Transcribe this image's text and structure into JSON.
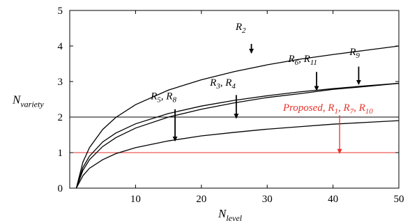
{
  "chart_data": {
    "type": "line",
    "xlabel": {
      "main": "N",
      "sub": "level"
    },
    "ylabel": {
      "main": "N",
      "sub": "variety"
    },
    "xlim": [
      0,
      50
    ],
    "ylim": [
      0,
      5
    ],
    "xticks": [
      {
        "value": 10,
        "label": "10"
      },
      {
        "value": 20,
        "label": "20"
      },
      {
        "value": 30,
        "label": "30"
      },
      {
        "value": 40,
        "label": "40"
      },
      {
        "value": 50,
        "label": "50"
      }
    ],
    "yticks": [
      {
        "value": 0,
        "label": "0"
      },
      {
        "value": 1,
        "label": "1"
      },
      {
        "value": 2,
        "label": "2"
      },
      {
        "value": 3,
        "label": "3"
      },
      {
        "value": 4,
        "label": "4"
      },
      {
        "value": 5,
        "label": "5"
      }
    ],
    "grid": false,
    "reference_lines": [
      {
        "y": 2,
        "color": "#000000"
      },
      {
        "y": 1,
        "color": "#e8312a"
      }
    ],
    "series": [
      {
        "color": "#000000",
        "x": [
          1,
          2,
          3,
          5,
          7,
          10,
          15,
          20,
          25,
          30,
          35,
          40,
          45,
          50
        ],
        "y": [
          0,
          0.73,
          1.14,
          1.65,
          1.99,
          2.35,
          2.76,
          3.05,
          3.28,
          3.47,
          3.63,
          3.76,
          3.88,
          4.0
        ]
      },
      {
        "color": "#000000",
        "x": [
          1,
          2,
          3,
          5,
          7,
          10,
          15,
          20,
          25,
          30,
          35,
          40,
          45,
          50
        ],
        "y": [
          0,
          0.58,
          0.9,
          1.3,
          1.55,
          1.81,
          2.1,
          2.31,
          2.47,
          2.6,
          2.71,
          2.8,
          2.88,
          2.95
        ]
      },
      {
        "color": "#000000",
        "x": [
          1,
          2,
          3,
          5,
          7,
          10,
          15,
          20,
          25,
          30,
          35,
          40,
          45,
          50
        ],
        "y": [
          0,
          0.5,
          0.8,
          1.17,
          1.42,
          1.69,
          2.0,
          2.22,
          2.4,
          2.55,
          2.66,
          2.78,
          2.86,
          2.95
        ]
      },
      {
        "color": "#000000",
        "x": [
          1,
          2,
          3,
          5,
          7,
          10,
          15,
          20,
          25,
          30,
          35,
          40,
          45,
          50
        ],
        "y": [
          0,
          0.35,
          0.56,
          0.8,
          0.97,
          1.14,
          1.33,
          1.47,
          1.57,
          1.66,
          1.73,
          1.8,
          1.85,
          1.9
        ]
      }
    ],
    "annotations": [
      {
        "parts": [
          {
            "text": "R",
            "sub": "2"
          }
        ],
        "color": "#000000",
        "text_at": [
          25.2,
          4.45
        ],
        "arrow_from": [
          27.6,
          4.06
        ],
        "arrow_to": [
          27.6,
          3.8
        ]
      },
      {
        "parts": [
          {
            "text": "R",
            "sub": "6"
          },
          {
            "text": ", R",
            "sub": "11"
          }
        ],
        "color": "#000000",
        "text_at": [
          33.2,
          3.55
        ],
        "arrow_from": [
          37.5,
          3.27
        ],
        "arrow_to": [
          37.5,
          2.75
        ]
      },
      {
        "parts": [
          {
            "text": "R",
            "sub": "9"
          }
        ],
        "color": "#000000",
        "text_at": [
          42.5,
          3.75
        ],
        "arrow_from": [
          43.9,
          3.42
        ],
        "arrow_to": [
          43.9,
          2.92
        ]
      },
      {
        "parts": [
          {
            "text": "R",
            "sub": "3"
          },
          {
            "text": ", R",
            "sub": "4"
          }
        ],
        "color": "#000000",
        "text_at": [
          21.3,
          2.88
        ],
        "arrow_from": [
          25.3,
          2.62
        ],
        "arrow_to": [
          25.3,
          1.97
        ]
      },
      {
        "parts": [
          {
            "text": "R",
            "sub": "5"
          },
          {
            "text": ", R",
            "sub": "8"
          }
        ],
        "color": "#000000",
        "text_at": [
          12.3,
          2.5
        ],
        "arrow_from": [
          16.0,
          2.22
        ],
        "arrow_to": [
          16.0,
          1.33
        ]
      },
      {
        "parts": [
          {
            "text": "Proposed, R",
            "sub": "1"
          },
          {
            "text": ", R",
            "sub": "7"
          },
          {
            "text": ", R",
            "sub": "10"
          }
        ],
        "color": "#e8312a",
        "text_at": [
          32.4,
          2.18
        ],
        "arrow_from": [
          41.0,
          2.05
        ],
        "arrow_to": [
          41.0,
          0.98
        ]
      }
    ]
  }
}
